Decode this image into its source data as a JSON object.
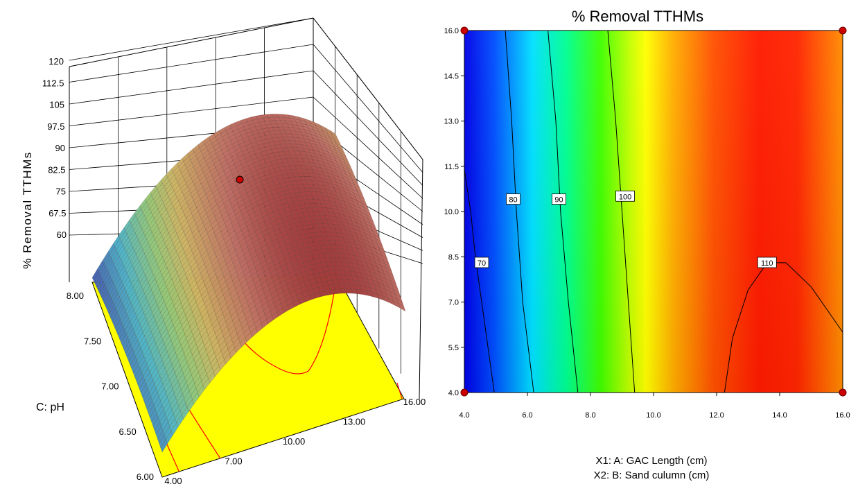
{
  "chart_data": [
    {
      "type": "surface",
      "zlabel": "% Removal TTHMs",
      "ylabel": "C: pH",
      "x_ticks": [
        "4.00",
        "7.00",
        "10.00",
        "13.00",
        "16.00"
      ],
      "y_ticks": [
        "6.00",
        "6.50",
        "7.00",
        "7.50",
        "8.00"
      ],
      "z_ticks": [
        "60",
        "67.5",
        "75",
        "82.5",
        "90",
        "97.5",
        "105",
        "112.5",
        "120"
      ],
      "x_range": [
        4,
        16
      ],
      "y_range": [
        6,
        8
      ],
      "z_range": [
        60,
        120
      ],
      "floor_color": "#ffff00",
      "contour_color": "#ff0000",
      "design_point": {
        "x": 10,
        "y": 7,
        "z": 101,
        "color": "#cc0000"
      }
    },
    {
      "type": "contour",
      "title": "% Removal TTHMs",
      "xlabel": "X1: A: GAC Length (cm)",
      "x2label": "X2: B: Sand culumn (cm)",
      "x_ticks": [
        "4.0",
        "6.0",
        "8.0",
        "10.0",
        "12.0",
        "14.0",
        "16.0"
      ],
      "y_ticks": [
        "4.0",
        "5.5",
        "7.0",
        "8.5",
        "10.0",
        "11.5",
        "13.0",
        "14.5",
        "16.0"
      ],
      "x_range": [
        4,
        16
      ],
      "y_range": [
        4,
        16
      ],
      "contour_levels": [
        "70",
        "80",
        "90",
        "100",
        "110"
      ],
      "design_points": [
        {
          "x": 4,
          "y": 4
        },
        {
          "x": 4,
          "y": 16
        },
        {
          "x": 16,
          "y": 4
        },
        {
          "x": 16,
          "y": 16
        }
      ],
      "colormap": [
        "#0000ff",
        "#00ffff",
        "#00ff00",
        "#ffff00",
        "#ff8000",
        "#ff0000"
      ]
    }
  ]
}
